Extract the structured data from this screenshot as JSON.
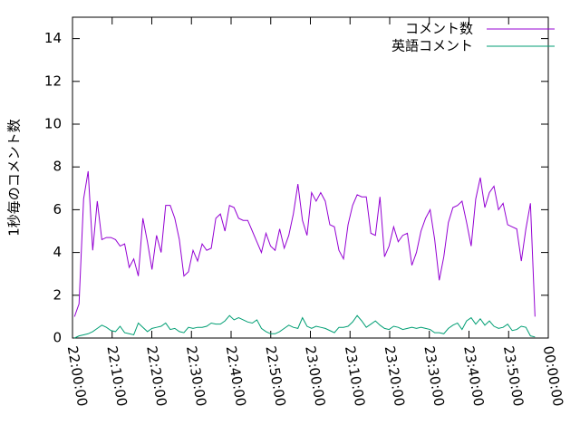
{
  "chart_data": {
    "type": "line",
    "ylabel": "1秒毎のコメント数",
    "legend": "top-right",
    "xlim": [
      0,
      120
    ],
    "xticks": [
      {
        "value": 0,
        "label": "22:00:00"
      },
      {
        "value": 10,
        "label": "22:10:00"
      },
      {
        "value": 20,
        "label": "22:20:00"
      },
      {
        "value": 30,
        "label": "22:30:00"
      },
      {
        "value": 40,
        "label": "22:40:00"
      },
      {
        "value": 50,
        "label": "22:50:00"
      },
      {
        "value": 60,
        "label": "23:00:00"
      },
      {
        "value": 70,
        "label": "23:10:00"
      },
      {
        "value": 80,
        "label": "23:20:00"
      },
      {
        "value": 90,
        "label": "23:30:00"
      },
      {
        "value": 100,
        "label": "23:40:00"
      },
      {
        "value": 110,
        "label": "23:50:00"
      },
      {
        "value": 120,
        "label": "00:00:00"
      }
    ],
    "ylim": [
      0,
      15
    ],
    "yticks": [
      0,
      2,
      4,
      6,
      8,
      10,
      12,
      14
    ],
    "x": [
      0.5,
      1.65,
      2.8,
      3.95,
      5.1,
      6.25,
      7.4,
      8.55,
      9.7,
      10.85,
      12,
      13.15,
      14.3,
      15.45,
      16.6,
      17.75,
      18.9,
      20.05,
      21.2,
      22.35,
      23.5,
      24.65,
      25.8,
      26.95,
      28.1,
      29.25,
      30.4,
      31.55,
      32.7,
      33.85,
      35,
      36.15,
      37.3,
      38.45,
      39.6,
      40.75,
      41.9,
      43.05,
      44.2,
      45.35,
      46.5,
      47.65,
      48.8,
      49.95,
      51.1,
      52.25,
      53.4,
      54.55,
      55.7,
      56.85,
      58,
      59.15,
      60.3,
      61.45,
      62.6,
      63.75,
      64.9,
      66.05,
      67.2,
      68.35,
      69.5,
      70.65,
      71.8,
      72.95,
      74.1,
      75.25,
      76.4,
      77.55,
      78.7,
      79.85,
      81,
      82.15,
      83.3,
      84.45,
      85.6,
      86.75,
      87.9,
      89.05,
      90.2,
      91.35,
      92.5,
      93.65,
      94.8,
      95.95,
      97.1,
      98.25,
      99.4,
      100.55,
      101.7,
      102.85,
      104,
      105.15,
      106.3,
      107.45,
      108.6,
      109.75,
      110.9,
      112.05,
      113.2,
      114.35,
      115.5,
      116.65
    ],
    "series": [
      {
        "name": "コメント数",
        "color": "#9400d3",
        "values": [
          1.0,
          1.6,
          6.5,
          7.8,
          4.1,
          6.4,
          4.6,
          4.7,
          4.7,
          4.6,
          4.3,
          4.4,
          3.3,
          3.7,
          2.9,
          5.6,
          4.5,
          3.2,
          4.8,
          4.0,
          6.2,
          6.2,
          5.6,
          4.6,
          2.9,
          3.1,
          4.1,
          3.6,
          4.4,
          4.1,
          4.2,
          5.6,
          5.8,
          5.0,
          6.2,
          6.1,
          5.6,
          5.5,
          5.5,
          5.0,
          4.5,
          4.0,
          4.9,
          4.3,
          4.1,
          5.1,
          4.2,
          4.8,
          5.8,
          7.2,
          5.5,
          4.8,
          6.8,
          6.4,
          6.8,
          6.4,
          5.3,
          5.2,
          4.1,
          3.7,
          5.3,
          6.2,
          6.7,
          6.6,
          6.6,
          4.9,
          4.8,
          6.6,
          3.8,
          4.3,
          5.2,
          4.5,
          4.8,
          4.9,
          3.4,
          4.0,
          5.0,
          5.6,
          6.0,
          4.6,
          2.7,
          3.8,
          5.4,
          6.1,
          6.2,
          6.4,
          5.4,
          4.3,
          6.5,
          7.5,
          6.1,
          6.8,
          7.1,
          6.0,
          6.3,
          5.3,
          5.2,
          5.1,
          3.6,
          5.1,
          6.3,
          1.0
        ]
      },
      {
        "name": "英語コメント",
        "color": "#009e73",
        "values": [
          0.0,
          0.1,
          0.15,
          0.2,
          0.3,
          0.45,
          0.6,
          0.5,
          0.35,
          0.3,
          0.55,
          0.25,
          0.2,
          0.15,
          0.7,
          0.5,
          0.3,
          0.45,
          0.5,
          0.55,
          0.7,
          0.4,
          0.45,
          0.3,
          0.25,
          0.5,
          0.45,
          0.5,
          0.5,
          0.55,
          0.7,
          0.65,
          0.65,
          0.8,
          1.05,
          0.85,
          0.95,
          0.85,
          0.75,
          0.7,
          0.85,
          0.45,
          0.3,
          0.2,
          0.2,
          0.3,
          0.45,
          0.6,
          0.5,
          0.45,
          0.95,
          0.55,
          0.45,
          0.55,
          0.5,
          0.45,
          0.35,
          0.25,
          0.5,
          0.5,
          0.55,
          0.75,
          1.05,
          0.8,
          0.5,
          0.65,
          0.8,
          0.6,
          0.45,
          0.4,
          0.55,
          0.5,
          0.4,
          0.45,
          0.5,
          0.45,
          0.5,
          0.45,
          0.4,
          0.25,
          0.25,
          0.2,
          0.45,
          0.6,
          0.7,
          0.4,
          0.8,
          0.95,
          0.65,
          0.9,
          0.6,
          0.8,
          0.55,
          0.45,
          0.5,
          0.65,
          0.35,
          0.4,
          0.55,
          0.5,
          0.1,
          0.05
        ]
      }
    ]
  }
}
